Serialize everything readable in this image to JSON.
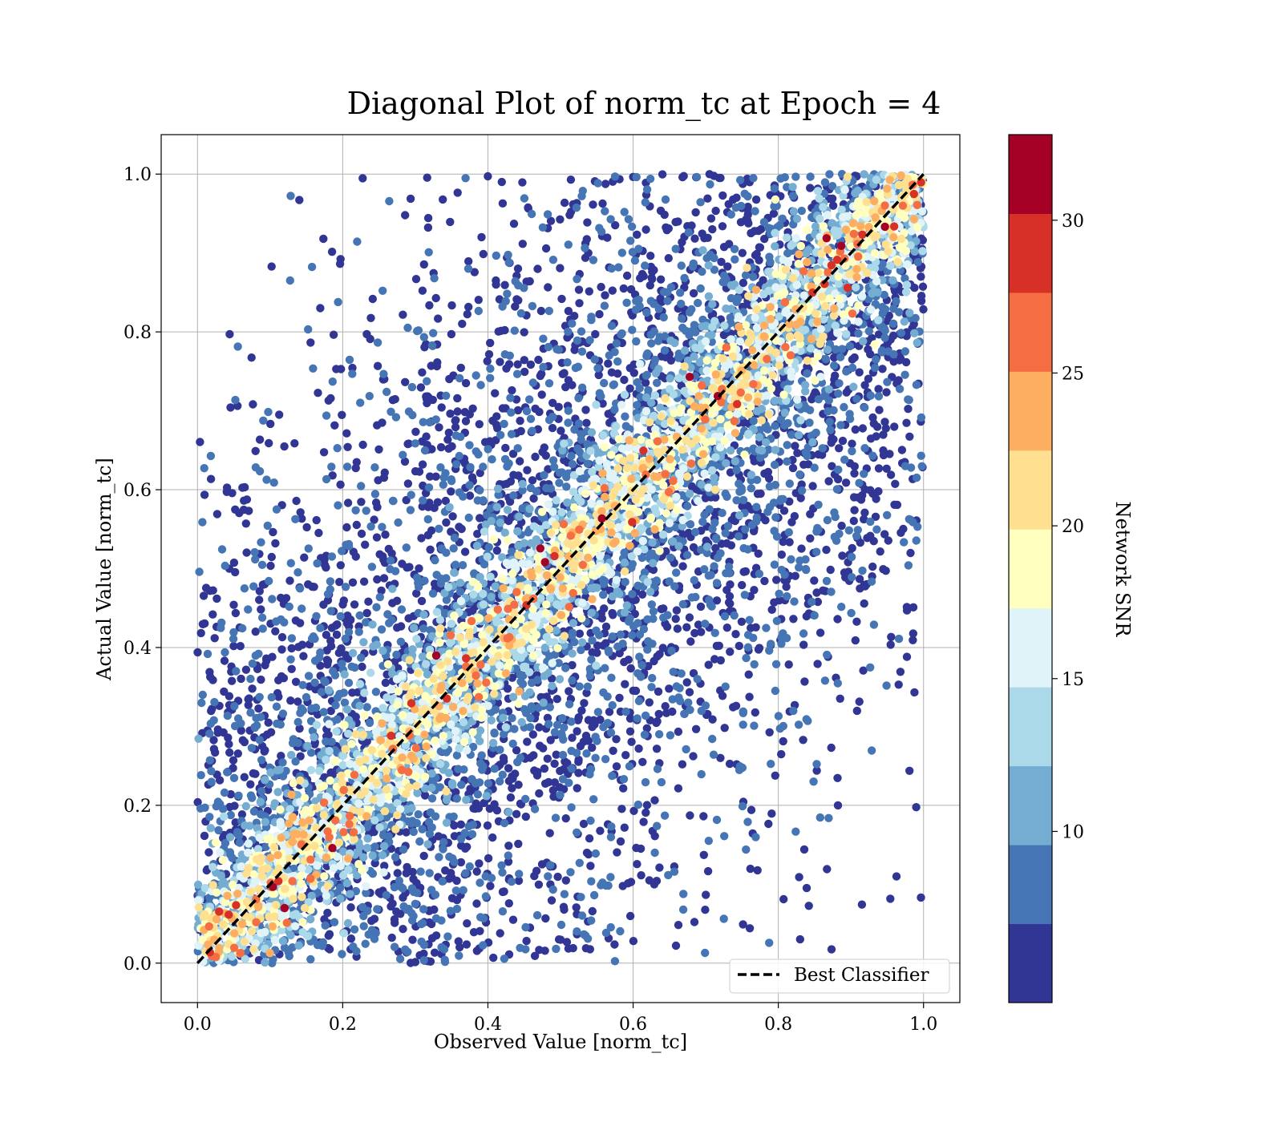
{
  "chart_data": {
    "type": "scatter",
    "title": "Diagonal Plot of norm_tc at Epoch = 4",
    "xlabel": "Observed Value [norm_tc]",
    "ylabel": "Actual Value [norm_tc]",
    "xlim": [
      -0.05,
      1.05
    ],
    "ylim": [
      -0.05,
      1.05
    ],
    "xticks": [
      0.0,
      0.2,
      0.4,
      0.6,
      0.8,
      1.0
    ],
    "yticks": [
      0.0,
      0.2,
      0.4,
      0.6,
      0.8,
      1.0
    ],
    "xtick_labels": [
      "0.0",
      "0.2",
      "0.4",
      "0.6",
      "0.8",
      "1.0"
    ],
    "ytick_labels": [
      "0.0",
      "0.2",
      "0.4",
      "0.6",
      "0.8",
      "1.0"
    ],
    "grid": true,
    "reference_line": {
      "label": "Best Classifier",
      "x": [
        0.0,
        1.0
      ],
      "y": [
        0.0,
        1.0
      ],
      "style": "dashed",
      "color": "#000000"
    },
    "legend": {
      "placement": "lower right",
      "entries": [
        "Best Classifier"
      ]
    },
    "colorbar": {
      "label": "Network SNR",
      "min": 4.4,
      "max": 32.8,
      "ticks": [
        10,
        15,
        20,
        25,
        30
      ],
      "tick_labels": [
        "10",
        "15",
        "20",
        "25",
        "30"
      ],
      "colors": [
        "#313695",
        "#4575b4",
        "#74add1",
        "#abd9e9",
        "#e0f3f8",
        "#ffffbf",
        "#fee090",
        "#fdae61",
        "#f46d43",
        "#d73027",
        "#a50026"
      ],
      "colormap": "RdYlBu_r"
    },
    "points_description_free": true,
    "scatter_model": {
      "n_points": 9000,
      "x_range": [
        0.0,
        1.0
      ],
      "y_range": [
        0.0,
        1.0
      ],
      "concentration": "points cluster along the y = x diagonal; higher SNR points lie closer to the diagonal"
    }
  }
}
